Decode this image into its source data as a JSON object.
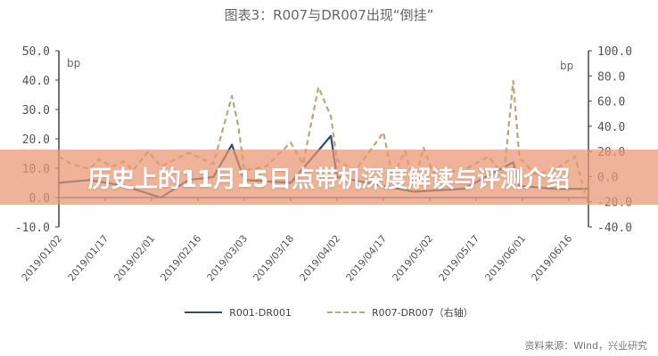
{
  "chart_data": {
    "type": "line",
    "title": "图表3：R007与DR007出现“倒挂”",
    "left_axis": {
      "unit": "bp",
      "ylim": [
        -10,
        50
      ],
      "ticks": [
        "50.0",
        "40.0",
        "30.0",
        "20.0",
        "10.0",
        "0.0",
        "-10.0"
      ],
      "tick_values": [
        50,
        40,
        30,
        20,
        10,
        0,
        -10
      ]
    },
    "right_axis": {
      "unit": "bp",
      "ylim": [
        -40,
        100
      ],
      "ticks": [
        "100.0",
        "80.0",
        "60.0",
        "40.0",
        "20.0",
        "0.0",
        "-20.0",
        "-40.0"
      ],
      "tick_values": [
        100,
        80,
        60,
        40,
        20,
        0,
        -20,
        -40
      ]
    },
    "x_ticks": [
      "2019/01/02",
      "2019/01/17",
      "2019/02/01",
      "2019/02/16",
      "2019/03/03",
      "2019/03/18",
      "2019/04/02",
      "2019/04/17",
      "2019/05/02",
      "2019/05/17",
      "2019/06/01",
      "2019/06/16"
    ],
    "grid": false,
    "legend_position": "bottom",
    "series": [
      {
        "name": "R001-DR001",
        "axis": "left",
        "color": "#2b4a6f",
        "style": "solid",
        "x": [
          "2019-01-02",
          "2019-01-12",
          "2019-01-23",
          "2019-02-04",
          "2019-02-13",
          "2019-02-21",
          "2019-02-27",
          "2019-03-03",
          "2019-03-18",
          "2019-03-31",
          "2019-04-02",
          "2019-04-17",
          "2019-04-27",
          "2019-05-13",
          "2019-05-29",
          "2019-05-31",
          "2019-06-11",
          "2019-06-22"
        ],
        "y": [
          5,
          6,
          4,
          0,
          6,
          7,
          18,
          6,
          5,
          21,
          7,
          4,
          2,
          3,
          12,
          4,
          3,
          3
        ]
      },
      {
        "name": "R007-DR007",
        "axis": "right",
        "color": "#b8a67e",
        "style": "dashed",
        "x": [
          "2019-01-02",
          "2019-01-06",
          "2019-01-12",
          "2019-01-15",
          "2019-01-19",
          "2019-01-23",
          "2019-01-26",
          "2019-01-31",
          "2019-02-04",
          "2019-02-13",
          "2019-02-21",
          "2019-02-27",
          "2019-03-01",
          "2019-03-03",
          "2019-03-10",
          "2019-03-18",
          "2019-03-22",
          "2019-03-27",
          "2019-03-31",
          "2019-04-02",
          "2019-04-08",
          "2019-04-17",
          "2019-04-20",
          "2019-04-24",
          "2019-04-27",
          "2019-04-30",
          "2019-05-03",
          "2019-05-13",
          "2019-05-21",
          "2019-05-26",
          "2019-05-29",
          "2019-05-31",
          "2019-06-05",
          "2019-06-11",
          "2019-06-18",
          "2019-06-22"
        ],
        "y": [
          16,
          10,
          6,
          14,
          8,
          12,
          5,
          20,
          8,
          19,
          10,
          64,
          41,
          5,
          8,
          27,
          10,
          71,
          48,
          13,
          5,
          35,
          0,
          20,
          -6,
          23,
          3,
          5,
          16,
          1,
          76,
          15,
          2,
          5,
          16,
          -20
        ]
      }
    ],
    "legend": [
      "R001-DR001",
      "R007-DR007（右轴）"
    ]
  },
  "source": "资料来源：Wind，兴业研究",
  "banner": "历史上的11月15日点带机深度解读与评测介绍"
}
